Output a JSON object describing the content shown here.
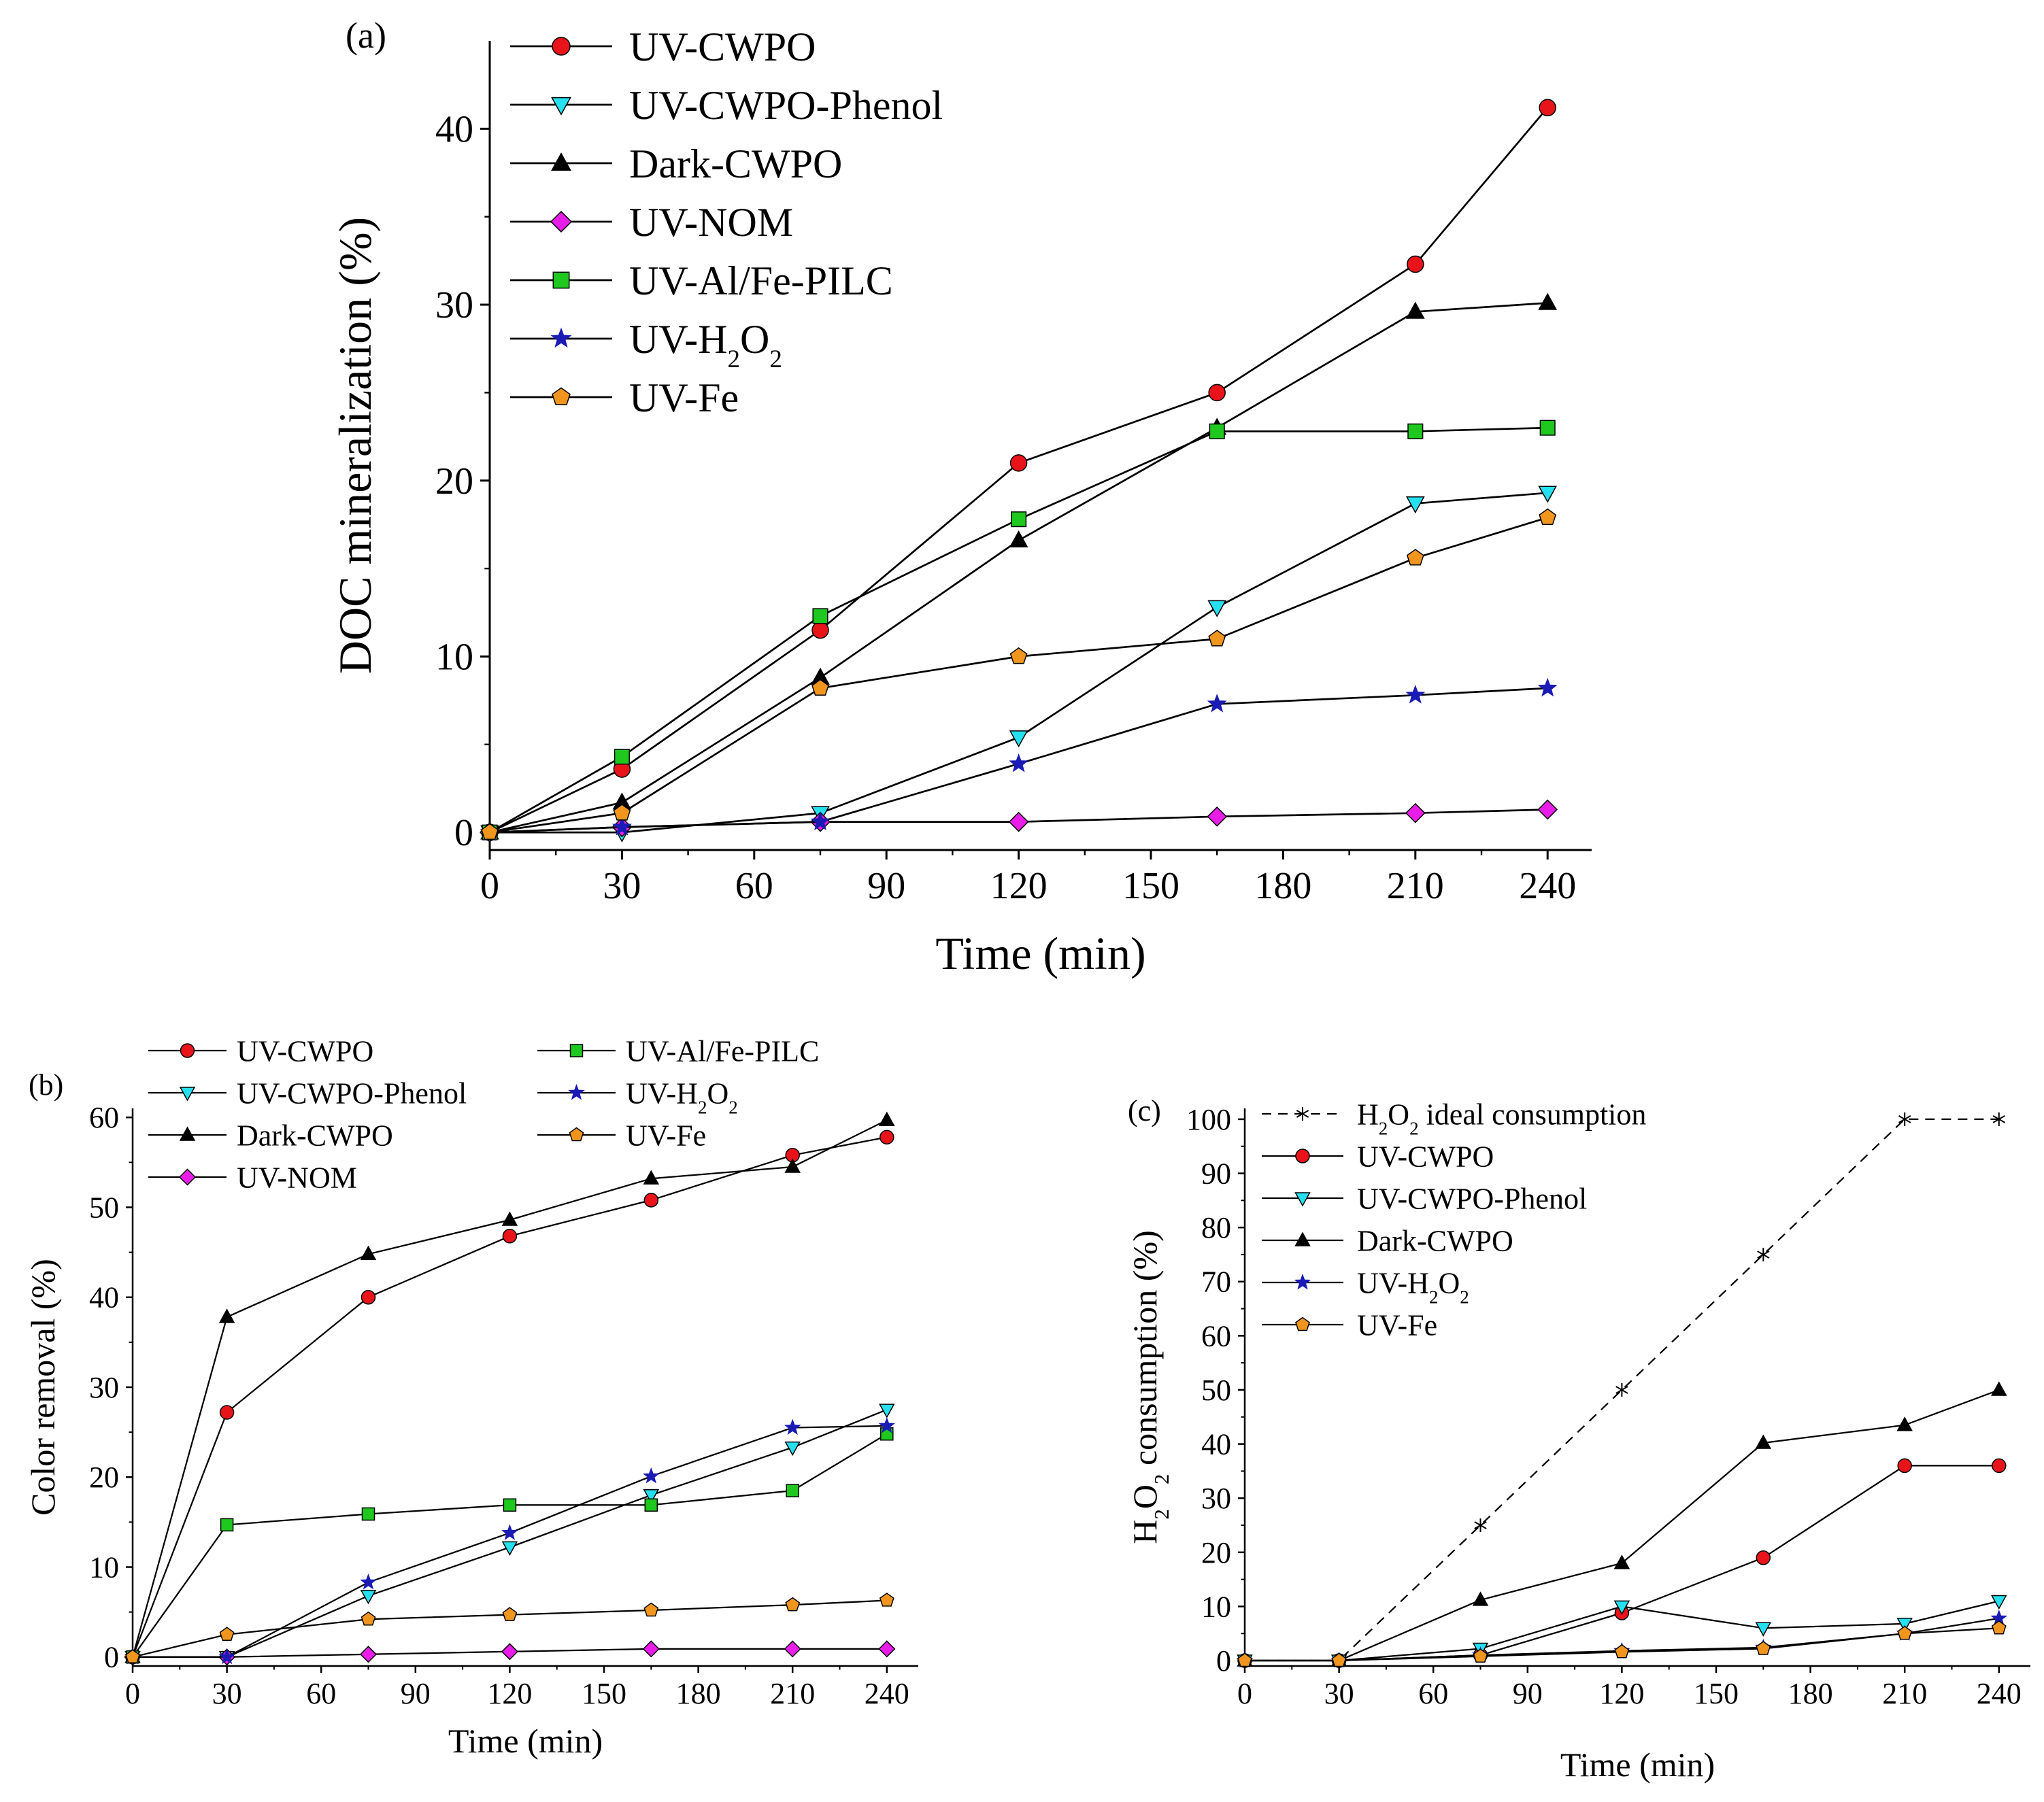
{
  "chart_data": [
    {
      "panel": "(a)",
      "type": "line",
      "xlabel": "Time (min)",
      "ylabel": "DOC mineralization (%)",
      "xlim": [
        0,
        250
      ],
      "ylim": [
        -1,
        45
      ],
      "xticks": [
        0,
        30,
        60,
        90,
        120,
        150,
        180,
        210,
        240
      ],
      "yticks": [
        0,
        10,
        20,
        30,
        40
      ],
      "x": [
        0,
        30,
        75,
        120,
        165,
        210,
        240
      ],
      "legend_position": "top-left",
      "series": [
        {
          "name": "UV-CWPO",
          "sub": "",
          "tail": "",
          "marker": "circle",
          "color": "#e8141a",
          "values": [
            0,
            3.6,
            11.5,
            21.0,
            25.0,
            32.3,
            41.2
          ]
        },
        {
          "name": "UV-CWPO-Phenol",
          "sub": "",
          "tail": "",
          "marker": "triangle-down",
          "color": "#26e0f0",
          "values": [
            0,
            0,
            1.1,
            5.4,
            12.8,
            18.7,
            19.3
          ]
        },
        {
          "name": "Dark-CWPO",
          "sub": "",
          "tail": "",
          "marker": "triangle-up",
          "color": "#000000",
          "values": [
            0,
            1.7,
            8.8,
            16.6,
            23.0,
            29.6,
            30.1
          ]
        },
        {
          "name": "UV-NOM",
          "sub": "",
          "tail": "",
          "marker": "diamond",
          "color": "#e81ee8",
          "values": [
            0,
            0.3,
            0.6,
            0.6,
            0.9,
            1.1,
            1.3
          ]
        },
        {
          "name": "UV-Al/Fe-PILC",
          "sub": "",
          "tail": "",
          "marker": "square",
          "color": "#1ec81e",
          "values": [
            0,
            4.3,
            12.3,
            17.8,
            22.8,
            22.8,
            23.0
          ]
        },
        {
          "name": "UV-H",
          "sub": "2",
          "tail": "O",
          "sub2": "2",
          "marker": "star",
          "color": "#1a1ab4",
          "values": [
            0,
            0.3,
            0.6,
            3.9,
            7.3,
            7.8,
            8.2
          ]
        },
        {
          "name": "UV-Fe",
          "sub": "",
          "tail": "",
          "marker": "pentagon",
          "color": "#f0961e",
          "values": [
            0,
            1.1,
            8.2,
            10.0,
            11.0,
            15.6,
            17.9
          ]
        }
      ]
    },
    {
      "panel": "(b)",
      "type": "line",
      "xlabel": "Time (min)",
      "ylabel": "Color removal (%)",
      "xlim": [
        0,
        250
      ],
      "ylim": [
        -1,
        61
      ],
      "xticks": [
        0,
        30,
        60,
        90,
        120,
        150,
        180,
        210,
        240
      ],
      "yticks": [
        0,
        10,
        20,
        30,
        40,
        50,
        60
      ],
      "x": [
        0,
        30,
        75,
        120,
        165,
        210,
        240
      ],
      "legend_position": "top",
      "series": [
        {
          "name": "UV-CWPO",
          "sub": "",
          "tail": "",
          "marker": "circle",
          "color": "#e8141a",
          "values": [
            0,
            27.2,
            40.0,
            46.8,
            50.8,
            55.8,
            57.8
          ]
        },
        {
          "name": "UV-CWPO-Phenol",
          "sub": "",
          "tail": "",
          "marker": "triangle-down",
          "color": "#26e0f0",
          "values": [
            0,
            0,
            6.8,
            12.2,
            18.0,
            23.3,
            27.5
          ]
        },
        {
          "name": "Dark-CWPO",
          "sub": "",
          "tail": "",
          "marker": "triangle-up",
          "color": "#000000",
          "values": [
            0,
            37.8,
            44.8,
            48.6,
            53.2,
            54.5,
            59.7
          ]
        },
        {
          "name": "UV-NOM",
          "sub": "",
          "tail": "",
          "marker": "diamond",
          "color": "#e81ee8",
          "values": [
            0,
            0,
            0.3,
            0.6,
            0.9,
            0.9,
            0.9
          ]
        },
        {
          "name": "UV-Al/Fe-PILC",
          "sub": "",
          "tail": "",
          "marker": "square",
          "color": "#1ec81e",
          "values": [
            0,
            14.7,
            15.9,
            16.9,
            16.9,
            18.5,
            24.8
          ]
        },
        {
          "name": "UV-H",
          "sub": "2",
          "tail": "O",
          "sub2": "2",
          "marker": "star",
          "color": "#1a1ab4",
          "values": [
            0,
            0,
            8.3,
            13.8,
            20.1,
            25.5,
            25.7
          ]
        },
        {
          "name": "UV-Fe",
          "sub": "",
          "tail": "",
          "marker": "pentagon",
          "color": "#f0961e",
          "values": [
            0,
            2.5,
            4.2,
            4.7,
            5.2,
            5.8,
            6.3
          ]
        }
      ]
    },
    {
      "panel": "(c)",
      "type": "line",
      "xlabel": "Time (min)",
      "ylabel_parts": [
        "H",
        "2",
        "O",
        "2",
        " consumption (%)"
      ],
      "xlim": [
        0,
        250
      ],
      "ylim": [
        -1,
        102
      ],
      "xticks": [
        0,
        30,
        60,
        90,
        120,
        150,
        180,
        210,
        240
      ],
      "yticks": [
        0,
        10,
        20,
        30,
        40,
        50,
        60,
        70,
        80,
        90,
        100
      ],
      "x": [
        0,
        30,
        75,
        120,
        165,
        210,
        240
      ],
      "legend_position": "top-left",
      "series": [
        {
          "name": "H",
          "sub": "2",
          "tail": "O",
          "sub2": "2",
          "tail2": " ideal consumption",
          "marker": "asterisk",
          "color": "#000000",
          "dashed": true,
          "values": [
            0,
            0,
            25,
            50,
            75,
            100,
            100
          ]
        },
        {
          "name": "UV-CWPO",
          "sub": "",
          "tail": "",
          "marker": "circle",
          "color": "#e8141a",
          "values": [
            0,
            0,
            1.0,
            8.8,
            19.0,
            36.0,
            36.0
          ]
        },
        {
          "name": "UV-CWPO-Phenol",
          "sub": "",
          "tail": "",
          "marker": "triangle-down",
          "color": "#26e0f0",
          "values": [
            0,
            0,
            2.2,
            10.0,
            6.0,
            6.8,
            11.0
          ]
        },
        {
          "name": "Dark-CWPO",
          "sub": "",
          "tail": "",
          "marker": "triangle-up",
          "color": "#000000",
          "values": [
            0,
            0,
            11.2,
            18.0,
            40.2,
            43.5,
            50.0
          ]
        },
        {
          "name": "UV-H",
          "sub": "2",
          "tail": "O",
          "sub2": "2",
          "marker": "star",
          "color": "#1a1ab4",
          "values": [
            0,
            0,
            1.0,
            1.8,
            2.4,
            5.0,
            7.8
          ]
        },
        {
          "name": "UV-Fe",
          "sub": "",
          "tail": "",
          "marker": "pentagon",
          "color": "#f0961e",
          "values": [
            0,
            0,
            0.8,
            1.6,
            2.2,
            5.0,
            6.0
          ]
        }
      ]
    }
  ]
}
